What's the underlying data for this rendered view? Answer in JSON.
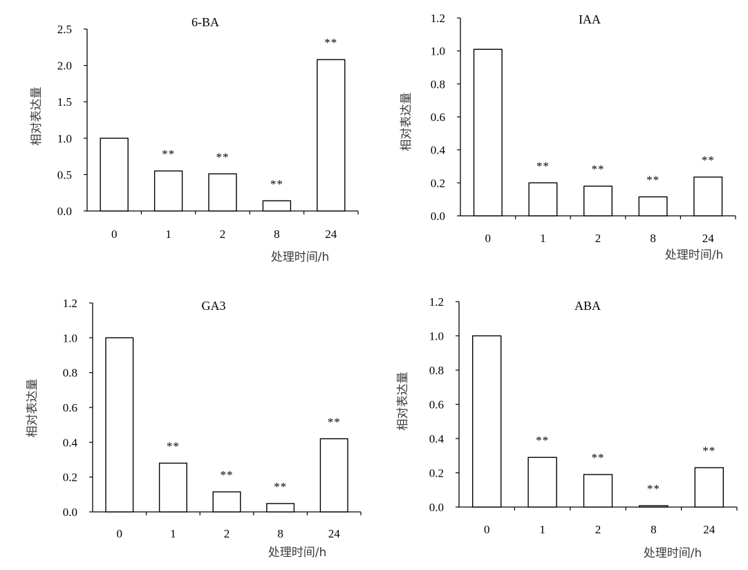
{
  "chart_data": [
    {
      "type": "bar",
      "title": "6-BA",
      "categories": [
        "0",
        "1",
        "2",
        "8",
        "24"
      ],
      "values": [
        1.0,
        0.55,
        0.51,
        0.14,
        2.08
      ],
      "annotations": [
        "",
        "**",
        "**",
        "**",
        "**"
      ],
      "xlabel": "处理时间/h",
      "ylabel": "相对表达量",
      "ylim": [
        0,
        2.5
      ],
      "yticks": [
        "0.0",
        "0.5",
        "1.0",
        "1.5",
        "2.0",
        "2.5"
      ],
      "grid": false,
      "bar_fill": "#ffffff",
      "bar_stroke": "#000000"
    },
    {
      "type": "bar",
      "title": "IAA",
      "categories": [
        "0",
        "1",
        "2",
        "8",
        "24"
      ],
      "values": [
        1.01,
        0.2,
        0.18,
        0.115,
        0.235
      ],
      "annotations": [
        "",
        "**",
        "**",
        "**",
        "**"
      ],
      "xlabel": "处理时间/h",
      "ylabel": "相对表达量",
      "ylim": [
        0,
        1.2
      ],
      "yticks": [
        "0.0",
        "0.2",
        "0.4",
        "0.6",
        "0.8",
        "1.0",
        "1.2"
      ],
      "grid": false,
      "bar_fill": "#ffffff",
      "bar_stroke": "#000000"
    },
    {
      "type": "bar",
      "title": "GA3",
      "categories": [
        "0",
        "1",
        "2",
        "8",
        "24"
      ],
      "values": [
        1.0,
        0.28,
        0.115,
        0.048,
        0.42
      ],
      "annotations": [
        "",
        "**",
        "**",
        "**",
        "**"
      ],
      "xlabel": "处理时间/h",
      "ylabel": "相对表达量",
      "ylim": [
        0,
        1.2
      ],
      "yticks": [
        "0.0",
        "0.2",
        "0.4",
        "0.6",
        "0.8",
        "1.0",
        "1.2"
      ],
      "grid": false,
      "bar_fill": "#ffffff",
      "bar_stroke": "#000000"
    },
    {
      "type": "bar",
      "title": "ABA",
      "categories": [
        "0",
        "1",
        "2",
        "8",
        "24"
      ],
      "values": [
        1.0,
        0.29,
        0.19,
        0.008,
        0.23
      ],
      "annotations": [
        "",
        "**",
        "**",
        "**",
        "**"
      ],
      "xlabel": "处理时间/h",
      "ylabel": "相对表达量",
      "ylim": [
        0,
        1.2
      ],
      "yticks": [
        "0.0",
        "0.2",
        "0.4",
        "0.6",
        "0.8",
        "1.0",
        "1.2"
      ],
      "grid": false,
      "bar_fill": "#ffffff",
      "bar_stroke": "#000000"
    }
  ]
}
